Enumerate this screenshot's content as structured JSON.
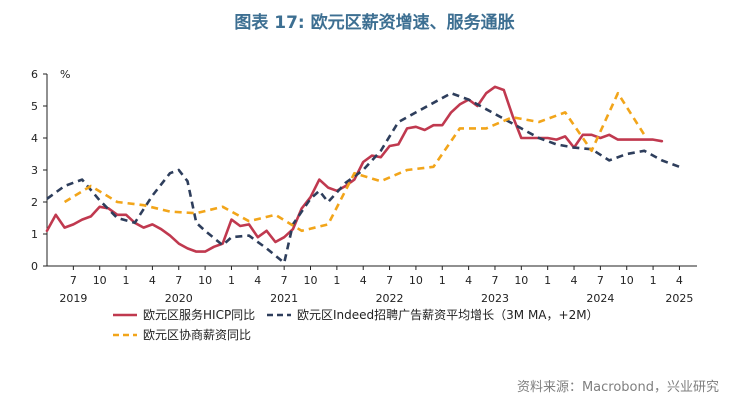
{
  "chart_data": {
    "type": "line",
    "title": "图表 17: 欧元区薪资增速、服务通胀",
    "unit_label": "%",
    "ylim": [
      0,
      6
    ],
    "yticks": [
      "0",
      "1",
      "2",
      "3",
      "4",
      "5",
      "6"
    ],
    "x_ticks": [
      {
        "month": "2019-07",
        "label": "7"
      },
      {
        "month": "2019-10",
        "label": "10"
      },
      {
        "month": "2020-01",
        "label": "1"
      },
      {
        "month": "2020-04",
        "label": "4"
      },
      {
        "month": "2020-07",
        "label": "7"
      },
      {
        "month": "2020-10",
        "label": "10"
      },
      {
        "month": "2021-01",
        "label": "1"
      },
      {
        "month": "2021-04",
        "label": "4"
      },
      {
        "month": "2021-07",
        "label": "7"
      },
      {
        "month": "2021-10",
        "label": "10"
      },
      {
        "month": "2022-01",
        "label": "1"
      },
      {
        "month": "2022-04",
        "label": "4"
      },
      {
        "month": "2022-07",
        "label": "7"
      },
      {
        "month": "2022-10",
        "label": "10"
      },
      {
        "month": "2023-01",
        "label": "1"
      },
      {
        "month": "2023-04",
        "label": "4"
      },
      {
        "month": "2023-07",
        "label": "7"
      },
      {
        "month": "2023-10",
        "label": "10"
      },
      {
        "month": "2024-01",
        "label": "1"
      },
      {
        "month": "2024-04",
        "label": "4"
      },
      {
        "month": "2024-07",
        "label": "7"
      },
      {
        "month": "2024-10",
        "label": "10"
      },
      {
        "month": "2025-01",
        "label": "1"
      },
      {
        "month": "2025-04",
        "label": "4"
      }
    ],
    "year_labels": [
      {
        "month": "2019-07",
        "label": "2019"
      },
      {
        "month": "2020-07",
        "label": "2020"
      },
      {
        "month": "2021-07",
        "label": "2021"
      },
      {
        "month": "2022-07",
        "label": "2022"
      },
      {
        "month": "2023-07",
        "label": "2023"
      },
      {
        "month": "2024-07",
        "label": "2024"
      },
      {
        "month": "2025-04",
        "label": "2025"
      }
    ],
    "legend_position": "bottom",
    "series": [
      {
        "name": "欧元区服务HICP同比",
        "color": "#c0394f",
        "style": "solid",
        "x": [
          "2019-04",
          "2019-05",
          "2019-06",
          "2019-07",
          "2019-08",
          "2019-09",
          "2019-10",
          "2019-11",
          "2019-12",
          "2020-01",
          "2020-02",
          "2020-03",
          "2020-04",
          "2020-05",
          "2020-06",
          "2020-07",
          "2020-08",
          "2020-09",
          "2020-10",
          "2020-11",
          "2020-12",
          "2021-01",
          "2021-02",
          "2021-03",
          "2021-04",
          "2021-05",
          "2021-06",
          "2021-07",
          "2021-08",
          "2021-09",
          "2021-10",
          "2021-11",
          "2021-12",
          "2022-01",
          "2022-02",
          "2022-03",
          "2022-04",
          "2022-05",
          "2022-06",
          "2022-07",
          "2022-08",
          "2022-09",
          "2022-10",
          "2022-11",
          "2022-12",
          "2023-01",
          "2023-02",
          "2023-03",
          "2023-04",
          "2023-05",
          "2023-06",
          "2023-07",
          "2023-08",
          "2023-09",
          "2023-10",
          "2023-11",
          "2023-12",
          "2024-01",
          "2024-02",
          "2024-03",
          "2024-04",
          "2024-05",
          "2024-06",
          "2024-07",
          "2024-08",
          "2024-09",
          "2024-10",
          "2024-11",
          "2024-12",
          "2025-01",
          "2025-02"
        ],
        "values": [
          1.1,
          1.6,
          1.2,
          1.3,
          1.45,
          1.55,
          1.85,
          1.8,
          1.6,
          1.6,
          1.35,
          1.2,
          1.3,
          1.15,
          0.95,
          0.7,
          0.55,
          0.45,
          0.45,
          0.6,
          0.7,
          1.45,
          1.25,
          1.3,
          0.9,
          1.1,
          0.75,
          0.9,
          1.15,
          1.8,
          2.15,
          2.7,
          2.45,
          2.35,
          2.5,
          2.7,
          3.25,
          3.45,
          3.4,
          3.75,
          3.8,
          4.3,
          4.35,
          4.25,
          4.4,
          4.4,
          4.8,
          5.05,
          5.2,
          5.0,
          5.4,
          5.6,
          5.5,
          4.7,
          4.0,
          4.0,
          4.0,
          4.0,
          3.95,
          4.05,
          3.7,
          4.1,
          4.1,
          4.0,
          4.1,
          3.95,
          3.95,
          3.95,
          3.95,
          3.95,
          3.9
        ]
      },
      {
        "name": "欧元区Indeed招聘广告薪资平均增长（3M MA，+2M）",
        "color": "#2e3e5c",
        "style": "dashed",
        "x": [
          "2019-04",
          "2019-06",
          "2019-08",
          "2019-10",
          "2019-12",
          "2020-02",
          "2020-04",
          "2020-06",
          "2020-07",
          "2020-08",
          "2020-09",
          "2020-10",
          "2020-12",
          "2021-01",
          "2021-03",
          "2021-05",
          "2021-07",
          "2021-08",
          "2021-10",
          "2021-11",
          "2021-12",
          "2022-02",
          "2022-04",
          "2022-06",
          "2022-08",
          "2022-10",
          "2022-12",
          "2023-02",
          "2023-04",
          "2023-06",
          "2023-08",
          "2023-10",
          "2023-12",
          "2024-02",
          "2024-04",
          "2024-06",
          "2024-08",
          "2024-10",
          "2024-12",
          "2025-02",
          "2025-04"
        ],
        "values": [
          2.1,
          2.5,
          2.7,
          2.05,
          1.5,
          1.35,
          2.2,
          2.9,
          3.0,
          2.65,
          1.35,
          1.1,
          0.65,
          0.9,
          0.95,
          0.55,
          0.1,
          1.3,
          2.1,
          2.35,
          2.0,
          2.6,
          3.0,
          3.6,
          4.5,
          4.8,
          5.1,
          5.4,
          5.2,
          4.9,
          4.6,
          4.3,
          4.0,
          3.8,
          3.7,
          3.65,
          3.3,
          3.5,
          3.6,
          3.3,
          3.1
        ]
      },
      {
        "name": "欧元区协商薪资同比",
        "color": "#f2a51a",
        "style": "dashed",
        "x": [
          "2019-06",
          "2019-09",
          "2019-12",
          "2020-03",
          "2020-06",
          "2020-09",
          "2020-12",
          "2021-03",
          "2021-06",
          "2021-09",
          "2021-12",
          "2022-03",
          "2022-06",
          "2022-09",
          "2022-12",
          "2023-03",
          "2023-06",
          "2023-09",
          "2023-12",
          "2024-03",
          "2024-06",
          "2024-09",
          "2024-12",
          "2025-03"
        ],
        "values": [
          2.0,
          2.5,
          2.0,
          1.9,
          1.7,
          1.65,
          1.85,
          1.4,
          1.6,
          1.1,
          1.3,
          2.9,
          2.65,
          3.0,
          3.1,
          4.3,
          4.3,
          4.65,
          4.5,
          4.8,
          3.6,
          5.4,
          4.1,
          null
        ]
      }
    ]
  },
  "source_note": "资料来源：Macrobond，兴业研究"
}
